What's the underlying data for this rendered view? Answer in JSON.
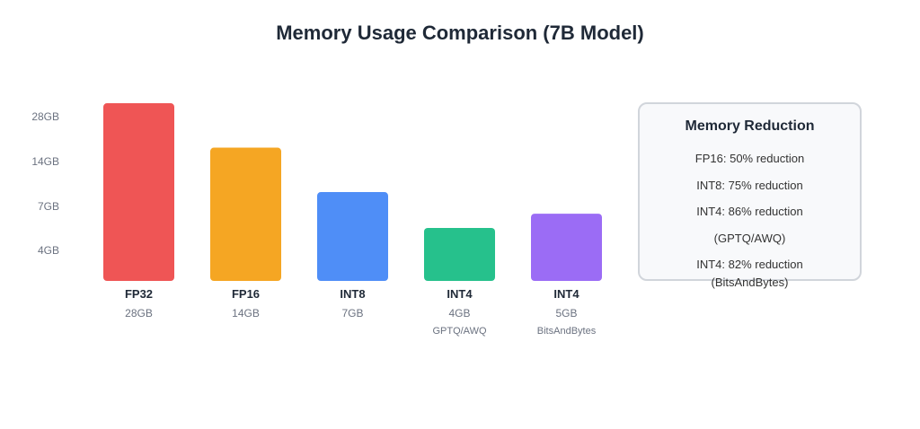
{
  "chart_data": {
    "type": "bar",
    "title": "Memory Usage Comparison (7B Model)",
    "categories": [
      "FP32",
      "FP16",
      "INT8",
      "INT4",
      "INT4"
    ],
    "value_labels": [
      "28GB",
      "14GB",
      "7GB",
      "4GB",
      "5GB"
    ],
    "sublabels": [
      "",
      "",
      "",
      "GPTQ/AWQ",
      "BitsAndBytes"
    ],
    "values": [
      28,
      14,
      7,
      4,
      5
    ],
    "unit": "GB",
    "colors": [
      "#EF5555",
      "#F5A623",
      "#4F8EF7",
      "#26C18C",
      "#9B6CF5"
    ],
    "yticks": [
      "28GB",
      "14GB",
      "7GB",
      "4GB"
    ],
    "ytick_values": [
      28,
      14,
      7,
      4
    ],
    "grid": false,
    "legend": "none"
  },
  "reduction_box": {
    "title": "Memory Reduction",
    "items": [
      "FP16: 50% reduction",
      "INT8: 75% reduction",
      "INT4: 86% reduction",
      "(GPTQ/AWQ)",
      "INT4: 82% reduction",
      "(BitsAndBytes)"
    ]
  }
}
